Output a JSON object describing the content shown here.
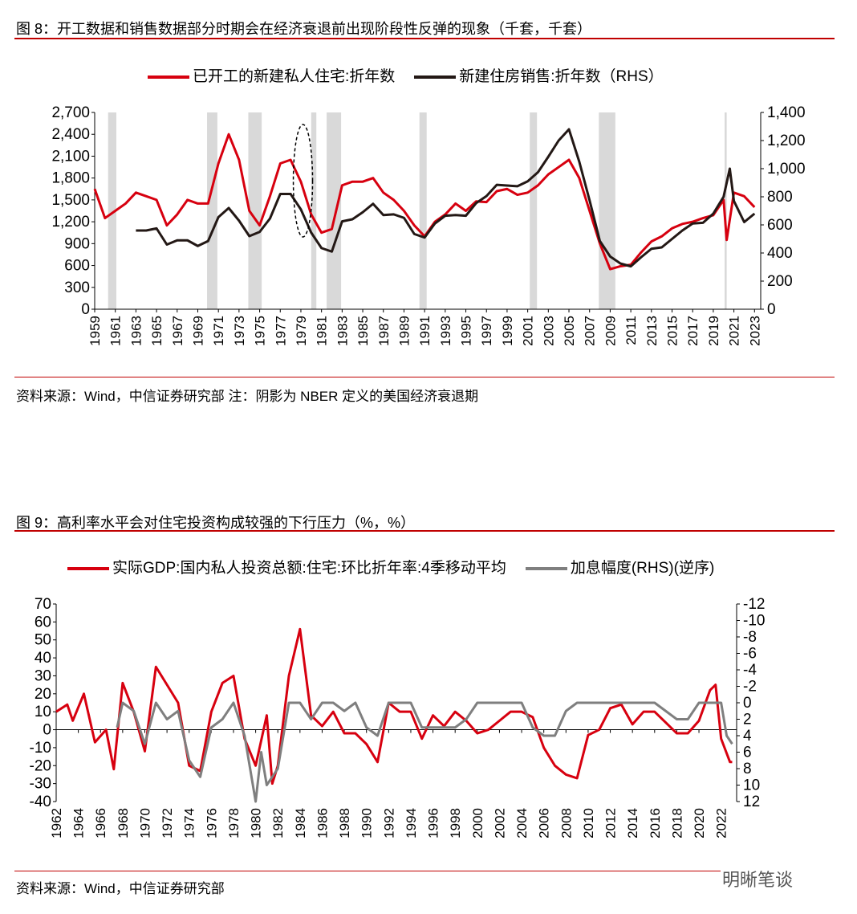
{
  "fig8": {
    "title": "图 8：开工数据和销售数据部分时期会在经济衰退前出现阶段性反弹的现象（千套，千套）",
    "source": "资料来源：Wind，中信证券研究部  注：阴影为 NBER 定义的美国经济衰退期"
  },
  "fig9": {
    "title": "图 9：高利率水平会对住宅投资构成较强的下行压力（%，%）",
    "source": "资料来源：Wind，中信证券研究部"
  },
  "watermark": "明晰笔谈",
  "chart_data": [
    {
      "type": "line",
      "title": "开工数据和销售数据部分时期会在经济衰退前出现阶段性反弹的现象",
      "xlim": [
        1959,
        2023.6
      ],
      "xticks": [
        1959,
        1961,
        1963,
        1965,
        1967,
        1969,
        1971,
        1973,
        1975,
        1977,
        1979,
        1981,
        1983,
        1985,
        1987,
        1989,
        1991,
        1993,
        1995,
        1997,
        1999,
        2001,
        2003,
        2005,
        2007,
        2009,
        2011,
        2013,
        2015,
        2017,
        2019,
        2021,
        2023
      ],
      "ylim": [
        0,
        2700
      ],
      "yticks": [
        0,
        300,
        600,
        900,
        1200,
        1500,
        1800,
        2100,
        2400,
        2700
      ],
      "yticklabels": [
        "0",
        "300",
        "600",
        "900",
        "1,200",
        "1,500",
        "1,800",
        "2,100",
        "2,400",
        "2,700"
      ],
      "y2lim": [
        0,
        1400
      ],
      "y2ticks": [
        0,
        200,
        400,
        600,
        800,
        1000,
        1200,
        1400
      ],
      "y2ticklabels": [
        "0",
        "200",
        "400",
        "600",
        "800",
        "1,000",
        "1,200",
        "1,400"
      ],
      "recessions": [
        [
          1960.3,
          1961.1
        ],
        [
          1969.9,
          1970.9
        ],
        [
          1973.9,
          1975.2
        ],
        [
          1980.0,
          1980.5
        ],
        [
          1981.5,
          1982.9
        ],
        [
          1990.5,
          1991.2
        ],
        [
          2001.2,
          2001.9
        ],
        [
          2007.9,
          2009.5
        ],
        [
          2020.1,
          2020.3
        ]
      ],
      "series": [
        {
          "name": "已开工的新建私人住宅:折年数",
          "color": "#d7000f",
          "axis": "left",
          "x": [
            1959,
            1960,
            1961,
            1962,
            1963,
            1964,
            1965,
            1966,
            1967,
            1968,
            1969,
            1970,
            1971,
            1972,
            1973,
            1974,
            1975,
            1976,
            1977,
            1978,
            1979,
            1980,
            1981,
            1982,
            1983,
            1984,
            1985,
            1986,
            1987,
            1988,
            1989,
            1990,
            1991,
            1992,
            1993,
            1994,
            1995,
            1996,
            1997,
            1998,
            1999,
            2000,
            2001,
            2002,
            2003,
            2004,
            2005,
            2006,
            2007,
            2008,
            2009,
            2010,
            2011,
            2012,
            2013,
            2014,
            2015,
            2016,
            2017,
            2018,
            2019,
            2020,
            2020.3,
            2021,
            2022,
            2023
          ],
          "values": [
            1650,
            1250,
            1350,
            1450,
            1600,
            1550,
            1500,
            1150,
            1300,
            1500,
            1450,
            1450,
            2000,
            2400,
            2050,
            1350,
            1150,
            1550,
            2000,
            2050,
            1750,
            1300,
            1050,
            1100,
            1700,
            1750,
            1750,
            1800,
            1600,
            1500,
            1350,
            1150,
            1000,
            1200,
            1300,
            1450,
            1350,
            1480,
            1470,
            1620,
            1650,
            1570,
            1600,
            1700,
            1850,
            1950,
            2050,
            1800,
            1350,
            900,
            550,
            590,
            610,
            780,
            930,
            1000,
            1110,
            1170,
            1200,
            1250,
            1290,
            1500,
            950,
            1600,
            1550,
            1400
          ]
        },
        {
          "name": "新建住房销售:折年数（RHS）",
          "color": "#231815",
          "axis": "right",
          "x": [
            1963,
            1964,
            1965,
            1966,
            1967,
            1968,
            1969,
            1970,
            1971,
            1972,
            1973,
            1974,
            1975,
            1976,
            1977,
            1978,
            1979,
            1980,
            1981,
            1982,
            1983,
            1984,
            1985,
            1986,
            1987,
            1988,
            1989,
            1990,
            1991,
            1992,
            1993,
            1994,
            1995,
            1996,
            1997,
            1998,
            1999,
            2000,
            2001,
            2002,
            2003,
            2004,
            2005,
            2006,
            2007,
            2008,
            2009,
            2010,
            2011,
            2012,
            2013,
            2014,
            2015,
            2016,
            2017,
            2018,
            2019,
            2020,
            2020.6,
            2021,
            2022,
            2023
          ],
          "values": [
            560,
            560,
            575,
            460,
            490,
            490,
            450,
            485,
            655,
            720,
            630,
            520,
            550,
            645,
            820,
            820,
            710,
            545,
            435,
            410,
            625,
            640,
            690,
            750,
            670,
            675,
            650,
            535,
            510,
            610,
            665,
            670,
            665,
            755,
            805,
            885,
            880,
            875,
            910,
            975,
            1085,
            1200,
            1280,
            1050,
            775,
            485,
            375,
            325,
            305,
            370,
            430,
            440,
            500,
            560,
            610,
            615,
            680,
            800,
            1000,
            770,
            620,
            680
          ]
        }
      ]
    },
    {
      "type": "line",
      "title": "高利率水平会对住宅投资构成较强的下行压力",
      "xlim": [
        1962,
        2023.4
      ],
      "xticks": [
        1962,
        1964,
        1966,
        1968,
        1970,
        1972,
        1974,
        1976,
        1978,
        1980,
        1982,
        1984,
        1986,
        1988,
        1990,
        1992,
        1994,
        1996,
        1998,
        2000,
        2002,
        2004,
        2006,
        2008,
        2010,
        2012,
        2014,
        2016,
        2018,
        2020,
        2022
      ],
      "ylim": [
        -40,
        70
      ],
      "yticks": [
        -40,
        -30,
        -20,
        -10,
        0,
        10,
        20,
        30,
        40,
        50,
        60,
        70
      ],
      "y2lim": [
        12,
        -12
      ],
      "y2ticks": [
        12,
        10,
        8,
        6,
        4,
        2,
        0,
        -2,
        -4,
        -6,
        -8,
        -10,
        -12
      ],
      "y2_inverted": true,
      "series": [
        {
          "name": "实际GDP:国内私人投资总额:住宅:环比折年率:4季移动平均",
          "color": "#d7000f",
          "axis": "left",
          "x": [
            1962,
            1963,
            1963.5,
            1964.5,
            1965.5,
            1966.5,
            1967.2,
            1968,
            1969,
            1970,
            1971,
            1972,
            1973,
            1974,
            1975,
            1976,
            1977,
            1978,
            1979,
            1980,
            1981,
            1981.5,
            1982,
            1983,
            1984,
            1985,
            1986,
            1987,
            1988,
            1989,
            1990,
            1991,
            1992,
            1993,
            1994,
            1995,
            1996,
            1997,
            1998,
            1999,
            2000,
            2001,
            2002,
            2003,
            2004,
            2005,
            2006,
            2007,
            2008,
            2009,
            2010,
            2011,
            2012,
            2013,
            2014,
            2015,
            2016,
            2017,
            2018,
            2019,
            2020,
            2021,
            2021.5,
            2022,
            2022.8,
            2023
          ],
          "values": [
            10,
            14,
            5,
            20,
            -7,
            0,
            -22,
            26,
            10,
            -12,
            35,
            25,
            15,
            -20,
            -23,
            10,
            26,
            30,
            -5,
            -20,
            8,
            -30,
            -20,
            30,
            56,
            8,
            2,
            10,
            -2,
            -2,
            -8,
            -18,
            15,
            10,
            10,
            -5,
            8,
            2,
            10,
            5,
            -2,
            0,
            5,
            10,
            10,
            7,
            -10,
            -20,
            -25,
            -27,
            -3,
            0,
            12,
            14,
            3,
            10,
            10,
            4,
            -2,
            -2,
            5,
            22,
            25,
            -5,
            -18,
            -18
          ]
        },
        {
          "name": "加息幅度(RHS)(逆序)",
          "color": "#7f7f7f",
          "axis": "right",
          "x": [
            1967.5,
            1968,
            1969,
            1970,
            1971,
            1972,
            1973,
            1974,
            1975,
            1976,
            1977,
            1978,
            1979,
            1980,
            1980.5,
            1981,
            1982,
            1983,
            1984,
            1985,
            1986,
            1987,
            1988,
            1989,
            1990,
            1991,
            1992,
            1994,
            1995,
            1996,
            1997,
            1998,
            1999,
            2000,
            2004,
            2005,
            2006,
            2007,
            2008,
            2009,
            2016,
            2017,
            2018,
            2019,
            2020,
            2022,
            2022.5,
            2023
          ],
          "values": [
            3,
            0,
            1,
            5,
            0,
            2,
            1,
            7,
            9,
            3,
            2,
            0,
            4,
            12,
            6,
            10,
            8,
            0,
            0,
            2,
            0,
            0,
            1,
            0,
            3,
            4,
            0,
            0,
            3,
            3,
            3,
            3,
            2,
            0,
            0,
            3,
            4,
            4,
            1,
            0,
            0,
            1,
            2,
            2,
            0,
            0,
            4,
            5
          ]
        }
      ]
    }
  ]
}
